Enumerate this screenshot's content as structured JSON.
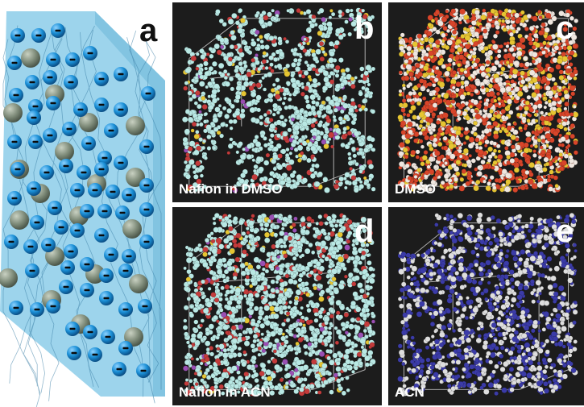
{
  "panels": [
    {
      "letter": "a",
      "caption": ""
    },
    {
      "letter": "b",
      "caption": "Nafion in DMSO"
    },
    {
      "letter": "c",
      "caption": "DMSO"
    },
    {
      "letter": "d",
      "caption": "Nafion in ACN"
    },
    {
      "letter": "e",
      "caption": "ACN"
    }
  ],
  "anion_symbol": "-",
  "colors": {
    "membrane": "#7fc7e6",
    "anion": "#1a8fd6",
    "cation": "#7d8a78",
    "sim_background": "#1c1c1c",
    "nafion_atoms": "#b9e8e4",
    "nafion_accent": "#c43b3b",
    "dmso_red": "#d8452a",
    "dmso_yellow": "#e6c532",
    "acn_blue": "#3b3ba8",
    "acn_white": "#dedede"
  }
}
